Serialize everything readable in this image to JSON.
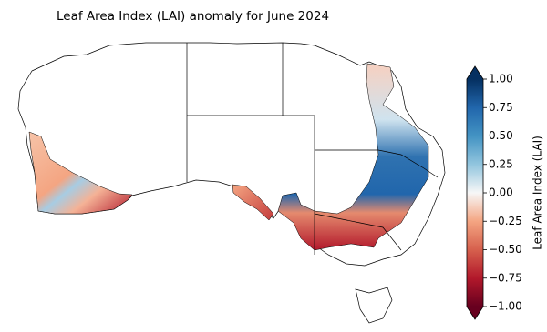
{
  "title": "Leaf Area Index (LAI) anomaly for June 2024",
  "colorbar": {
    "label": "Leaf Area Index (LAI)",
    "lim": [
      -1,
      1
    ],
    "ticks": [
      {
        "value": 1,
        "label": "1.00"
      },
      {
        "value": 0.75,
        "label": "0.75"
      },
      {
        "value": 0.5,
        "label": "0.50"
      },
      {
        "value": 0.25,
        "label": "0.25"
      },
      {
        "value": 0,
        "label": "0.00"
      },
      {
        "value": -0.25,
        "label": "−0.25"
      },
      {
        "value": -0.5,
        "label": "−0.50"
      },
      {
        "value": -0.75,
        "label": "−0.75"
      },
      {
        "value": -1,
        "label": "−1.00"
      }
    ]
  }
}
